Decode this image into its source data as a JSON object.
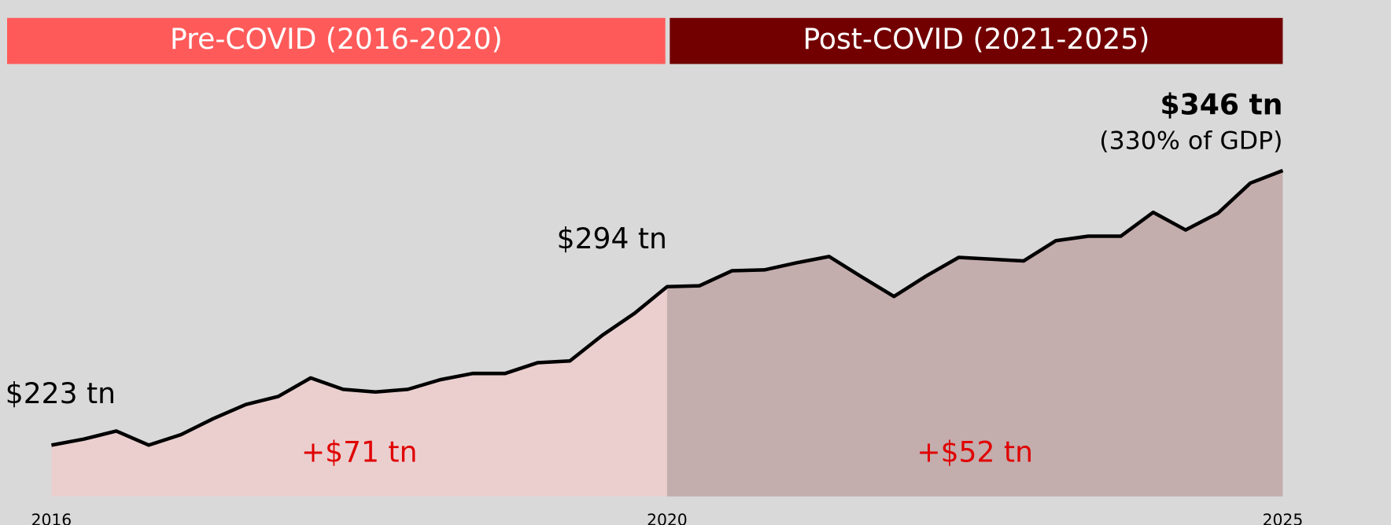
{
  "chart_data": {
    "type": "area",
    "periods": [
      {
        "label": "Pre-COVID (2016-2020)",
        "color": "#ff5a5a",
        "fill": "#ebcfcf",
        "change": "+$71 tn"
      },
      {
        "label": "Post-COVID (2021-2025)",
        "color": "#720000",
        "fill": "#c4adad",
        "change": "+$52 tn"
      }
    ],
    "categories": [
      "2016",
      null,
      null,
      null,
      null,
      null,
      null,
      null,
      null,
      null,
      null,
      null,
      null,
      null,
      null,
      null,
      null,
      null,
      null,
      "2020",
      null,
      null,
      null,
      null,
      null,
      null,
      null,
      null,
      null,
      null,
      null,
      null,
      null,
      null,
      null,
      null,
      null,
      null,
      "2025"
    ],
    "values": [
      223,
      225.7,
      229.3,
      223,
      227.7,
      234.9,
      241.2,
      244.8,
      253.1,
      248,
      246.8,
      248,
      252.3,
      255.1,
      255.1,
      259.9,
      260.7,
      272.2,
      282.1,
      294,
      294.4,
      301.1,
      301.5,
      304.7,
      307.5,
      298.4,
      289.6,
      298.8,
      307.1,
      306.3,
      305.5,
      314.6,
      316.6,
      316.6,
      327.3,
      319.4,
      326.9,
      340.4,
      346
    ],
    "value_labels": [
      "$223 tn",
      null,
      null,
      null,
      null,
      null,
      null,
      null,
      null,
      null,
      null,
      null,
      null,
      null,
      null,
      null,
      null,
      null,
      null,
      "$294 tn",
      null,
      null,
      null,
      null,
      null,
      null,
      null,
      null,
      null,
      null,
      null,
      null,
      null,
      null,
      null,
      null,
      null,
      null,
      "$346 tn"
    ],
    "gdp_note": "(330% of GDP)",
    "line_color": "#000000",
    "ylim": [
      200,
      360
    ]
  }
}
